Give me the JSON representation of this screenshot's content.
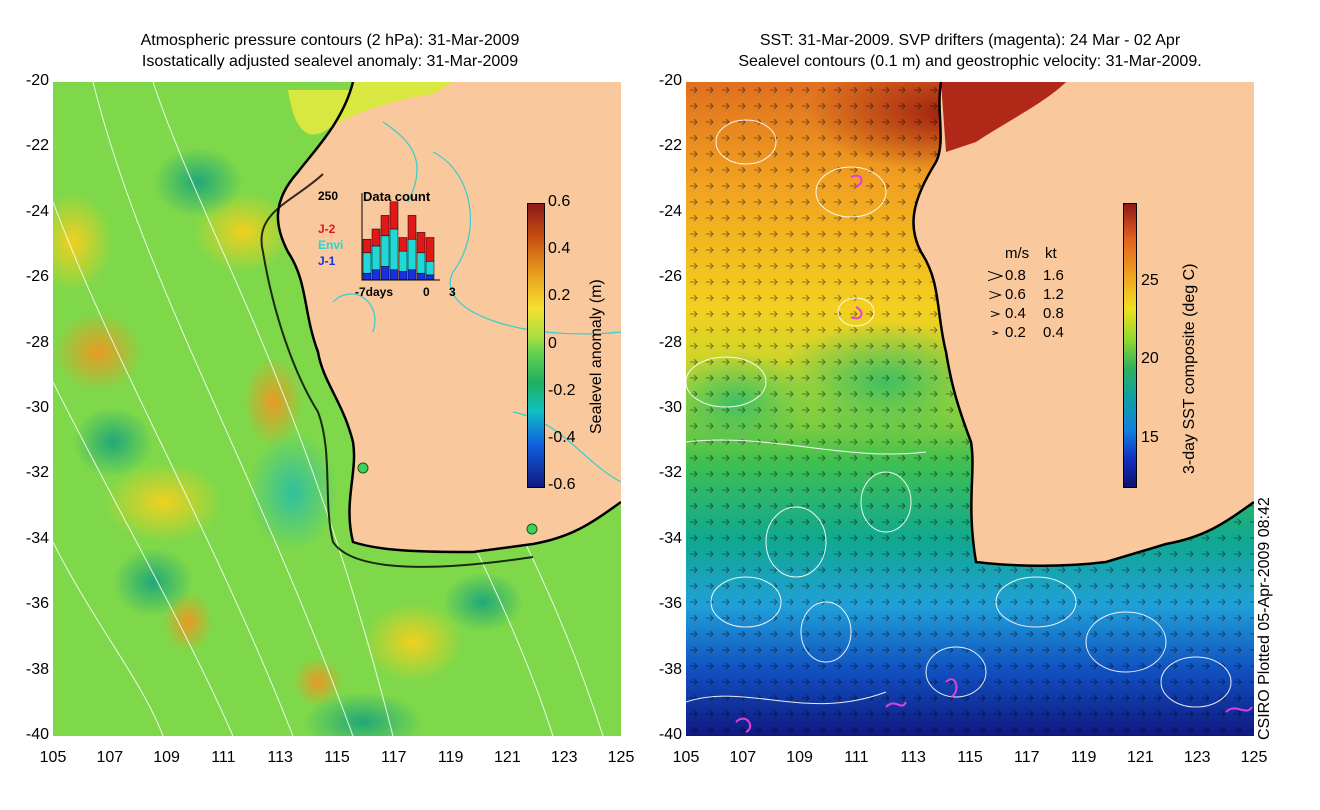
{
  "chart_data": [
    {
      "type": "heatmap",
      "title": [
        "Atmospheric pressure contours (2 hPa): 31-Mar-2009",
        "Isostatically adjusted sealevel anomaly: 31-Mar-2009"
      ],
      "xlim": [
        105,
        125
      ],
      "ylim": [
        -40,
        -20
      ],
      "x_ticks": [
        "105",
        "107",
        "109",
        "111",
        "113",
        "115",
        "117",
        "119",
        "121",
        "123",
        "125"
      ],
      "y_ticks": [
        "-20",
        "-22",
        "-24",
        "-26",
        "-28",
        "-30",
        "-32",
        "-34",
        "-36",
        "-38",
        "-40"
      ],
      "colorbar": {
        "label": "Sealevel anomaly (m)",
        "range": [
          -0.6,
          0.6
        ],
        "ticks": [
          "0.6",
          "0.4",
          "0.2",
          "0",
          "-0.2",
          "-0.4",
          "-0.6"
        ]
      },
      "inset": {
        "title": "Data count",
        "ymax_label": "250",
        "legend": [
          {
            "name": "J-2",
            "color": "#e01818"
          },
          {
            "name": "Envi",
            "color": "#20d8d8"
          },
          {
            "name": "J-1",
            "color": "#1830e0"
          }
        ],
        "x_ticks": [
          "-7days",
          "0",
          "3"
        ],
        "bins": [
          {
            "J-1": 20,
            "Envi": 60,
            "J-2": 40
          },
          {
            "J-1": 30,
            "Envi": 70,
            "J-2": 50
          },
          {
            "J-1": 40,
            "Envi": 90,
            "J-2": 60
          },
          {
            "J-1": 30,
            "Envi": 120,
            "J-2": 80
          },
          {
            "J-1": 25,
            "Envi": 60,
            "J-2": 40
          },
          {
            "J-1": 30,
            "Envi": 90,
            "J-2": 70
          },
          {
            "J-1": 20,
            "Envi": 60,
            "J-2": 60
          },
          {
            "J-1": 15,
            "Envi": 40,
            "J-2": 70
          }
        ]
      }
    },
    {
      "type": "heatmap",
      "title": [
        "SST: 31-Mar-2009. SVP drifters (magenta): 24 Mar - 02 Apr",
        "Sealevel contours (0.1 m) and geostrophic velocity: 31-Mar-2009."
      ],
      "xlim": [
        105,
        125
      ],
      "ylim": [
        -40,
        -20
      ],
      "x_ticks": [
        "105",
        "107",
        "109",
        "111",
        "113",
        "115",
        "117",
        "119",
        "121",
        "123",
        "125"
      ],
      "y_ticks": [
        "-20",
        "-22",
        "-24",
        "-26",
        "-28",
        "-30",
        "-32",
        "-34",
        "-36",
        "-38",
        "-40"
      ],
      "colorbar": {
        "label": "3-day SST composite (deg C)",
        "range": [
          12,
          30
        ],
        "ticks": [
          "25",
          "20",
          "15"
        ]
      },
      "velocity_key": {
        "header": [
          "m/s",
          "kt"
        ],
        "rows": [
          [
            "0.8",
            "1.6"
          ],
          [
            "0.6",
            "1.2"
          ],
          [
            "0.4",
            "0.8"
          ],
          [
            "0.2",
            "0.4"
          ]
        ]
      }
    }
  ],
  "credit": "CSIRO Plotted 05-Apr-2009 08:42",
  "colors": {
    "land": "#f9c89c",
    "contour": "#ffffff",
    "coast": "#000000",
    "cyan_contour": "#30d0d0",
    "drifter": "#e040e0"
  }
}
